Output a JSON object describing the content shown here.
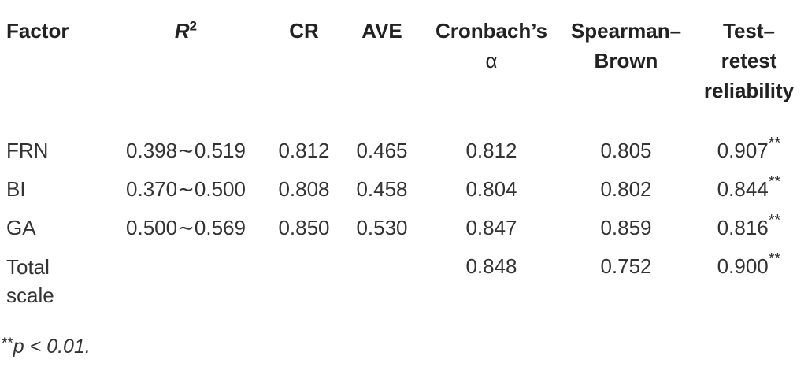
{
  "table": {
    "headers": {
      "factor": "Factor",
      "r2_letter": "R",
      "r2_sup": "2",
      "cr": "CR",
      "ave": "AVE",
      "cronbach_line1": "Cronbach’s",
      "cronbach_line2": "α",
      "spearman_line1": "Spearman–",
      "spearman_line2": "Brown",
      "testretest_line1": "Test–",
      "testretest_line2": "retest",
      "testretest_line3": "reliability"
    },
    "rows": [
      {
        "factor": "FRN",
        "r2": "0.398∼0.519",
        "cr": "0.812",
        "ave": "0.465",
        "cronbach": "0.812",
        "spearman": "0.805",
        "testretest": "0.907",
        "testretest_mark": "**"
      },
      {
        "factor": "BI",
        "r2": "0.370∼0.500",
        "cr": "0.808",
        "ave": "0.458",
        "cronbach": "0.804",
        "spearman": "0.802",
        "testretest": "0.844",
        "testretest_mark": "**"
      },
      {
        "factor": "GA",
        "r2": "0.500∼0.569",
        "cr": "0.850",
        "ave": "0.530",
        "cronbach": "0.847",
        "spearman": "0.859",
        "testretest": "0.816",
        "testretest_mark": "**"
      },
      {
        "factor_line1": "Total",
        "factor_line2": "scale",
        "r2": "",
        "cr": "",
        "ave": "",
        "cronbach": "0.848",
        "spearman": "0.752",
        "testretest": "0.900",
        "testretest_mark": "**"
      }
    ]
  },
  "footnote": {
    "mark": "**",
    "text": "p < 0.01."
  }
}
